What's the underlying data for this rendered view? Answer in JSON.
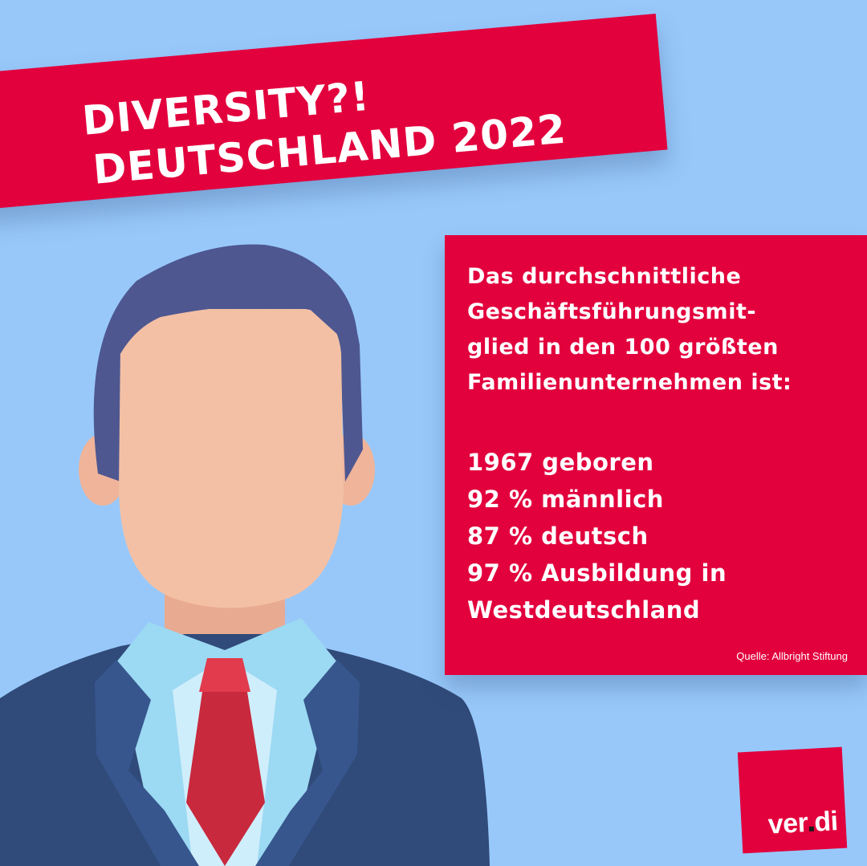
{
  "headline": {
    "line1": "DIVERSITY?!",
    "line2": "DEUTSCHLAND 2022"
  },
  "info": {
    "intro_lines": [
      "Das durchschnittliche",
      "Geschäftsführungsmit-",
      "glied in den 100 größten",
      "Familienunternehmen ist:"
    ],
    "facts": [
      "1967 geboren",
      "92 % männlich",
      "87 % deutsch",
      "97 % Ausbildung in",
      "Westdeutschland"
    ],
    "source": "Quelle: Allbright Stiftung"
  },
  "logo": {
    "part1": "ver",
    "part2": "di"
  },
  "colors": {
    "background": "#98c8fa",
    "brand_red": "#e2003d",
    "hair": "#4e5790",
    "skin": "#f3c0a5",
    "suit": "#304a79",
    "tie": "#d0303f"
  }
}
